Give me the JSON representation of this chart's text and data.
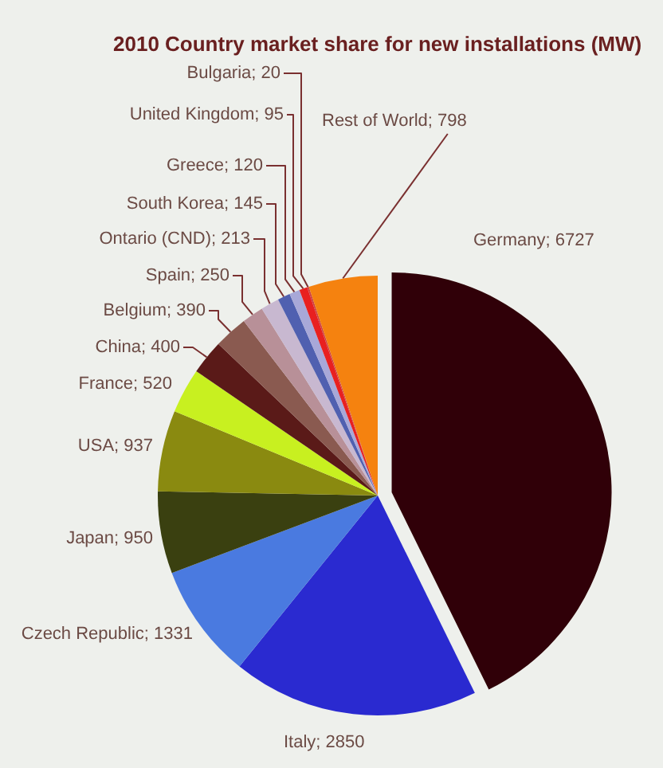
{
  "chart_data": {
    "type": "pie",
    "title": "2010 Country market share for new installations (MW)",
    "categories": [
      "Germany",
      "Italy",
      "Czech Republic",
      "Japan",
      "USA",
      "France",
      "China",
      "Belgium",
      "Spain",
      "Ontario (CND)",
      "South Korea",
      "Greece",
      "United Kingdom",
      "Bulgaria",
      "Rest of World"
    ],
    "values": [
      6727,
      2850,
      1331,
      950,
      937,
      520,
      400,
      390,
      250,
      213,
      145,
      120,
      95,
      20,
      798
    ],
    "value_labels": [
      "; 6727",
      "; 2850",
      "; 1331",
      "; 950",
      "; 937",
      "; 520",
      "; 400",
      "; 390",
      "; 250",
      "; 213",
      "; 145",
      "; 120",
      "; 95",
      "; 20",
      "; 798"
    ],
    "colors": [
      "#300008",
      "#2a2ad0",
      "#4a7ae0",
      "#3a4010",
      "#8a8a10",
      "#c8f020",
      "#5a1a18",
      "#8a5a50",
      "#b89098",
      "#c8b8d0",
      "#5060b0",
      "#a8a8d8",
      "#e82020",
      "#d04040",
      "#f5820f"
    ]
  }
}
